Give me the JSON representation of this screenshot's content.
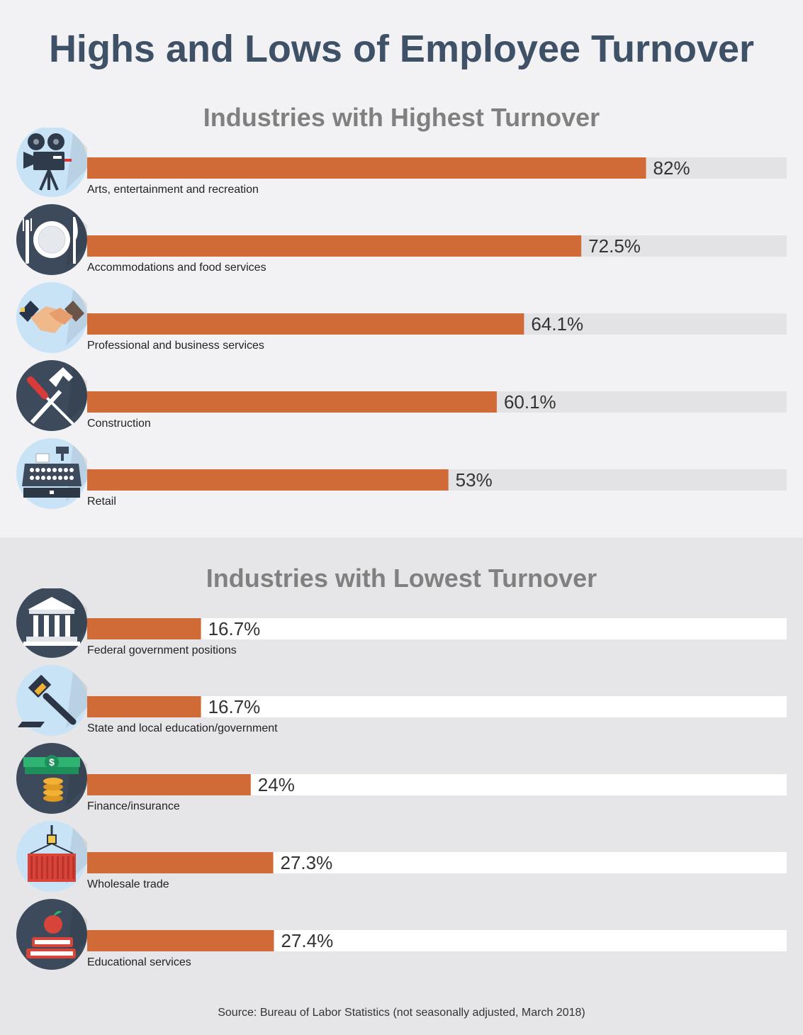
{
  "title": "Highs and Lows of Employee Turnover",
  "source": "Source: Bureau of Labor Statistics (not seasonally adjusted, March 2018)",
  "colors": {
    "bar": "#d06a36",
    "track_high": "#e3e3e5",
    "track_low": "#ffffff",
    "title": "#3e5166",
    "subtitle": "#808080",
    "icon_dark": "#3c4a5c",
    "icon_light": "#c9e3f6"
  },
  "chart_data": [
    {
      "type": "bar",
      "orientation": "horizontal",
      "title": "Industries with Highest Turnover",
      "xlim": [
        0,
        100
      ],
      "categories": [
        "Arts, entertainment and recreation",
        "Accommodations and food services",
        "Professional and business services",
        "Construction",
        "Retail"
      ],
      "values": [
        82,
        72.5,
        64.1,
        60.1,
        53
      ],
      "value_labels": [
        "82%",
        "72.5%",
        "64.1%",
        "60.1%",
        "53%"
      ],
      "icons": [
        "film-camera-icon",
        "plate-cutlery-icon",
        "handshake-icon",
        "hammer-screwdriver-icon",
        "cash-register-icon"
      ],
      "icon_bg": [
        "light",
        "dark",
        "light",
        "dark",
        "light"
      ]
    },
    {
      "type": "bar",
      "orientation": "horizontal",
      "title": "Industries with Lowest Turnover",
      "xlim": [
        0,
        100
      ],
      "categories": [
        "Federal government positions",
        "State and local education/government",
        "Finance/insurance",
        "Wholesale trade",
        "Educational services"
      ],
      "values": [
        16.7,
        16.7,
        24,
        27.3,
        27.4
      ],
      "value_labels": [
        "16.7%",
        "16.7%",
        "24%",
        "27.3%",
        "27.4%"
      ],
      "icons": [
        "government-building-icon",
        "gavel-icon",
        "money-coins-icon",
        "shipping-container-icon",
        "books-apple-icon"
      ],
      "icon_bg": [
        "dark",
        "light",
        "dark",
        "light",
        "dark"
      ]
    }
  ]
}
